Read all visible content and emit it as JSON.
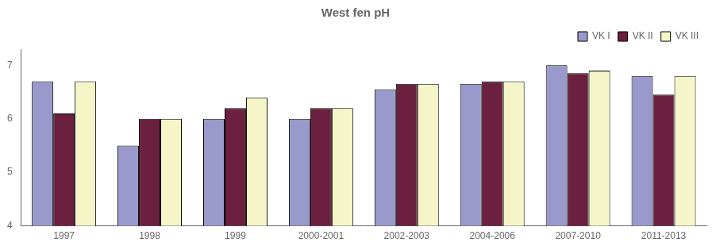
{
  "chart_data": {
    "type": "bar",
    "title": "West fen pH",
    "categories": [
      "1997",
      "1998",
      "1999",
      "2000-2001",
      "2002-2003",
      "2004-2006",
      "2007-2010",
      "2011-2013"
    ],
    "series": [
      {
        "name": "VK I",
        "color": "#9999cc",
        "values": [
          6.7,
          5.5,
          6.0,
          6.0,
          6.55,
          6.65,
          7.0,
          6.8
        ]
      },
      {
        "name": "VK II",
        "color": "#6b2040",
        "values": [
          6.1,
          6.0,
          6.2,
          6.2,
          6.65,
          6.7,
          6.85,
          6.45
        ]
      },
      {
        "name": "VK III",
        "color": "#f5f5c8",
        "values": [
          6.7,
          6.0,
          6.4,
          6.2,
          6.65,
          6.7,
          6.9,
          6.8
        ]
      }
    ],
    "ylim": [
      4,
      7.3
    ],
    "yticks": [
      4,
      5,
      6,
      7
    ],
    "grid": false,
    "legend": "upper right"
  }
}
